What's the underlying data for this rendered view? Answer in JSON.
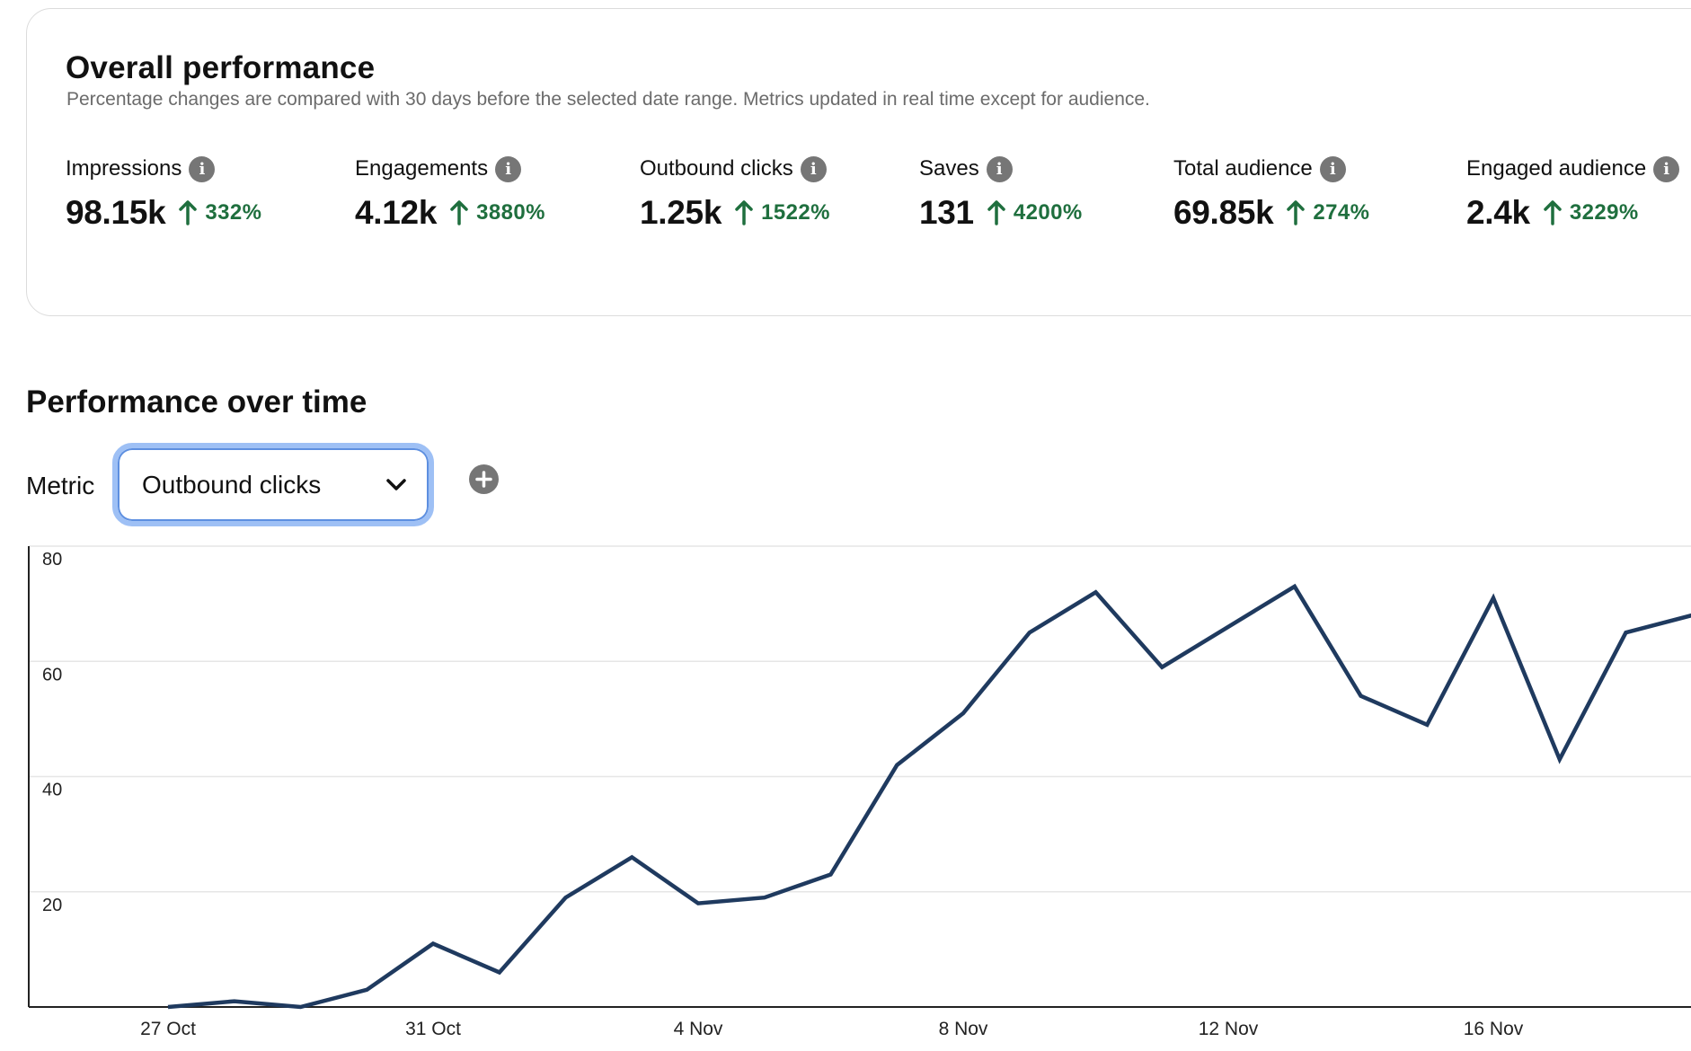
{
  "overall": {
    "title": "Overall performance",
    "subtitle": "Percentage changes are compared with 30 days before the selected date range. Metrics updated in real time except for audience.",
    "metrics": [
      {
        "label": "Impressions",
        "value": "98.15k",
        "change": "332%"
      },
      {
        "label": "Engagements",
        "value": "4.12k",
        "change": "3880%"
      },
      {
        "label": "Outbound clicks",
        "value": "1.25k",
        "change": "1522%"
      },
      {
        "label": "Saves",
        "value": "131",
        "change": "4200%"
      },
      {
        "label": "Total audience",
        "value": "69.85k",
        "change": "274%"
      },
      {
        "label": "Engaged audience",
        "value": "2.4k",
        "change": "3229%"
      }
    ]
  },
  "performance": {
    "title": "Performance over time",
    "metric_label": "Metric",
    "selected_metric": "Outbound clicks"
  },
  "icons": {
    "info": "info-icon",
    "arrow": "arrow-up-icon",
    "chevron": "chevron-down-icon",
    "add": "plus-circle-icon"
  },
  "colors": {
    "positive": "#1f6f3e",
    "line": "#1f3a5f",
    "focus_ring": "#9ec0f5"
  },
  "chart_data": {
    "type": "line",
    "x_tick_labels": [
      "27 Oct",
      "31 Oct",
      "4 Nov",
      "8 Nov",
      "12 Nov",
      "16 Nov"
    ],
    "y_tick_labels": [
      "20",
      "40",
      "60",
      "80"
    ],
    "ylim": [
      0,
      80
    ],
    "grid": true,
    "series": [
      {
        "x": [
          "27 Oct",
          "28 Oct",
          "29 Oct",
          "30 Oct",
          "31 Oct",
          "1 Nov",
          "2 Nov",
          "3 Nov",
          "4 Nov",
          "5 Nov",
          "6 Nov",
          "7 Nov",
          "8 Nov",
          "9 Nov",
          "10 Nov",
          "11 Nov",
          "12 Nov",
          "13 Nov",
          "14 Nov",
          "15 Nov",
          "16 Nov",
          "17 Nov",
          "18 Nov",
          "19 Nov"
        ],
        "values": [
          0,
          1,
          0,
          3,
          11,
          6,
          19,
          26,
          18,
          19,
          23,
          42,
          51,
          65,
          72,
          59,
          66,
          73,
          54,
          49,
          71,
          43,
          65,
          68
        ]
      }
    ]
  }
}
